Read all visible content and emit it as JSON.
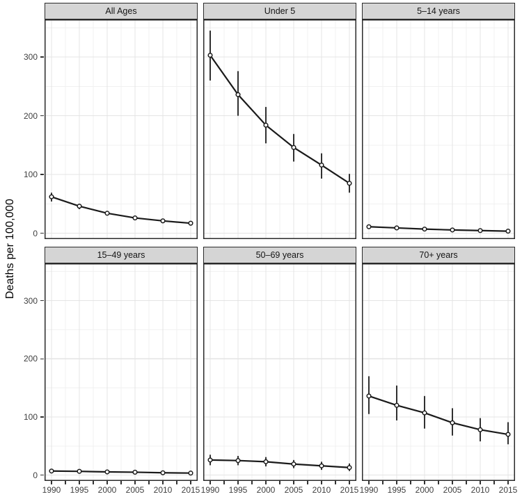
{
  "figure": {
    "ylabel": "Deaths per 100,000",
    "colors": {
      "background": "#ffffff",
      "strip_fill": "#d5d5d5",
      "strip_border": "#2a2a2a",
      "panel_border": "#2a2a2a",
      "grid_major": "#e4e4e4",
      "grid_minor": "#f1f1f1",
      "data": "#1a1a1a",
      "point_fill": "#ffffff",
      "tick_mark": "#333333",
      "tick_label": "#3f3f3f"
    }
  },
  "chart_data": {
    "type": "line",
    "title": "",
    "xlabel": "",
    "ylabel": "Deaths per 100,000",
    "grid": "major+minor",
    "legend": "none",
    "marker": "open-circle-with-error-bars",
    "x": [
      1990,
      1995,
      2000,
      2005,
      2010,
      2015
    ],
    "x_tick_labels": [
      "1990",
      "1995",
      "2000",
      "2005",
      "2010",
      "2015"
    ],
    "x_minor_step": 2.5,
    "y_ticks": [
      0,
      100,
      200,
      300
    ],
    "y_tick_labels": [
      "0",
      "100",
      "200",
      "300"
    ],
    "y_minor_ticks": [
      50,
      150,
      250,
      350
    ],
    "xlim": [
      1988.75,
      2016.25
    ],
    "ylim": [
      -10,
      364
    ],
    "facet_rows": 2,
    "facet_cols": 3,
    "facets": [
      {
        "label": "All Ages",
        "values": [
          62,
          46,
          34,
          26,
          21,
          17
        ],
        "lower": [
          54,
          41,
          31,
          23,
          19,
          15
        ],
        "upper": [
          69,
          50,
          37,
          29,
          24,
          19
        ]
      },
      {
        "label": "Under 5",
        "values": [
          303,
          236,
          184,
          146,
          116,
          85
        ],
        "lower": [
          260,
          200,
          153,
          122,
          93,
          69
        ],
        "upper": [
          345,
          276,
          215,
          169,
          136,
          101
        ]
      },
      {
        "label": "5–14 years",
        "values": [
          11,
          9,
          7,
          5.5,
          4.5,
          3.5
        ],
        "lower": [
          9.5,
          7.5,
          6,
          4.5,
          3.5,
          2.5
        ],
        "upper": [
          13,
          10.5,
          8,
          6.5,
          5.5,
          4.5
        ]
      },
      {
        "label": "15–49 years",
        "values": [
          7,
          6.5,
          5.5,
          5,
          4,
          3.5
        ],
        "lower": [
          6,
          5.5,
          4.5,
          4,
          3,
          2.5
        ],
        "upper": [
          8,
          7.5,
          6.5,
          6,
          5,
          4.5
        ]
      },
      {
        "label": "50–69 years",
        "values": [
          26,
          25,
          23,
          19,
          16,
          13
        ],
        "lower": [
          17,
          17,
          15,
          12,
          9,
          7
        ],
        "upper": [
          35,
          33,
          31,
          26,
          23,
          20
        ]
      },
      {
        "label": "70+ years",
        "values": [
          136,
          120,
          107,
          90,
          78,
          70
        ],
        "lower": [
          105,
          94,
          80,
          68,
          58,
          53
        ],
        "upper": [
          170,
          154,
          136,
          115,
          98,
          91
        ]
      }
    ]
  }
}
